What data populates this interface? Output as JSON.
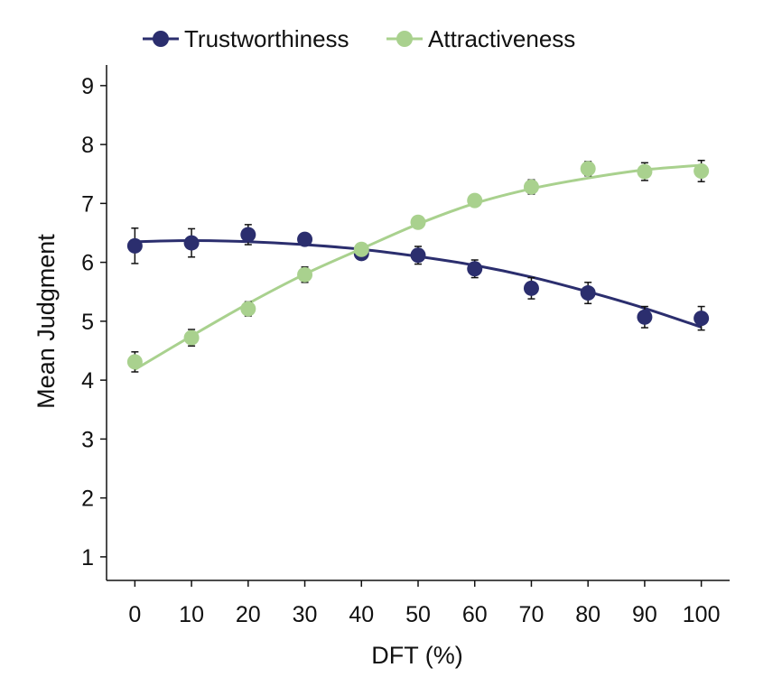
{
  "chart_data": {
    "type": "line",
    "xlabel": "DFT (%)",
    "ylabel": "Mean Judgment",
    "x": [
      0,
      10,
      20,
      30,
      40,
      50,
      60,
      70,
      80,
      90,
      100
    ],
    "xlim": [
      -5,
      105
    ],
    "ylim": [
      0.6,
      9.35
    ],
    "xticks": [
      0,
      10,
      20,
      30,
      40,
      50,
      60,
      70,
      80,
      90,
      100
    ],
    "yticks": [
      1,
      2,
      3,
      4,
      5,
      6,
      7,
      8,
      9
    ],
    "grid": false,
    "legend_position": "top",
    "series": [
      {
        "name": "Trustworthiness",
        "color": "#2b2e6e",
        "values": [
          6.28,
          6.33,
          6.47,
          6.39,
          6.15,
          6.12,
          5.89,
          5.56,
          5.48,
          5.07,
          5.05
        ],
        "error": [
          0.3,
          0.24,
          0.17,
          0.1,
          0.08,
          0.15,
          0.15,
          0.18,
          0.18,
          0.18,
          0.2
        ],
        "fit": [
          6.35,
          6.37,
          6.35,
          6.3,
          6.22,
          6.1,
          5.95,
          5.75,
          5.5,
          5.22,
          4.9
        ]
      },
      {
        "name": "Attractiveness",
        "color": "#a9d18e",
        "values": [
          4.31,
          4.72,
          5.21,
          5.79,
          6.22,
          6.68,
          7.05,
          7.28,
          7.59,
          7.54,
          7.55
        ],
        "error": [
          0.17,
          0.14,
          0.12,
          0.13,
          0.1,
          0.06,
          0.09,
          0.12,
          0.12,
          0.15,
          0.18
        ],
        "fit": [
          4.18,
          4.75,
          5.3,
          5.8,
          6.23,
          6.65,
          7.0,
          7.25,
          7.43,
          7.57,
          7.65
        ]
      }
    ]
  }
}
